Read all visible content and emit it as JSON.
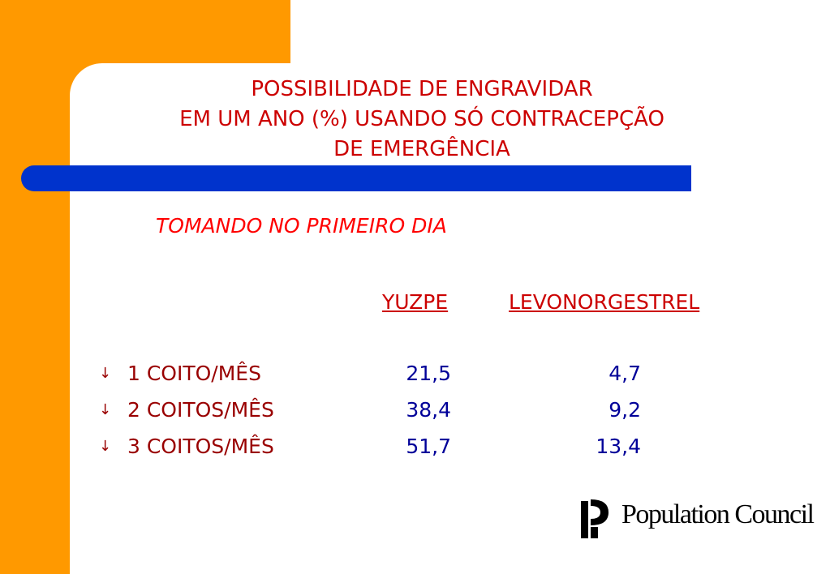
{
  "title_lines": [
    "POSSIBILIDADE DE ENGRAVIDAR",
    "EM UM ANO (%) USANDO SÓ CONTRACEPÇÃO",
    "DE EMERGÊNCIA"
  ],
  "subtitle": "TOMANDO NO PRIMEIRO DIA",
  "columns": [
    "YUZPE",
    "LEVONORGESTREL"
  ],
  "rows": [
    {
      "label": "1 COITO/MÊS",
      "yuzpe": "21,5",
      "levonorgestrel": "4,7"
    },
    {
      "label": "2 COITOS/MÊS",
      "yuzpe": "38,4",
      "levonorgestrel": "9,2"
    },
    {
      "label": "3 COITOS/MÊS",
      "yuzpe": "51,7",
      "levonorgestrel": "13,4"
    }
  ],
  "bullet_icon": "down-arrow-icon",
  "logo": {
    "text": "Population Council",
    "icon": "population-council-logo-icon"
  },
  "colors": {
    "orange": "#ff9900",
    "blue_bar": "#0033cc",
    "title_red": "#cc0000",
    "subtitle_red": "#ff0000",
    "label_dark_red": "#990000",
    "value_blue": "#000099"
  }
}
